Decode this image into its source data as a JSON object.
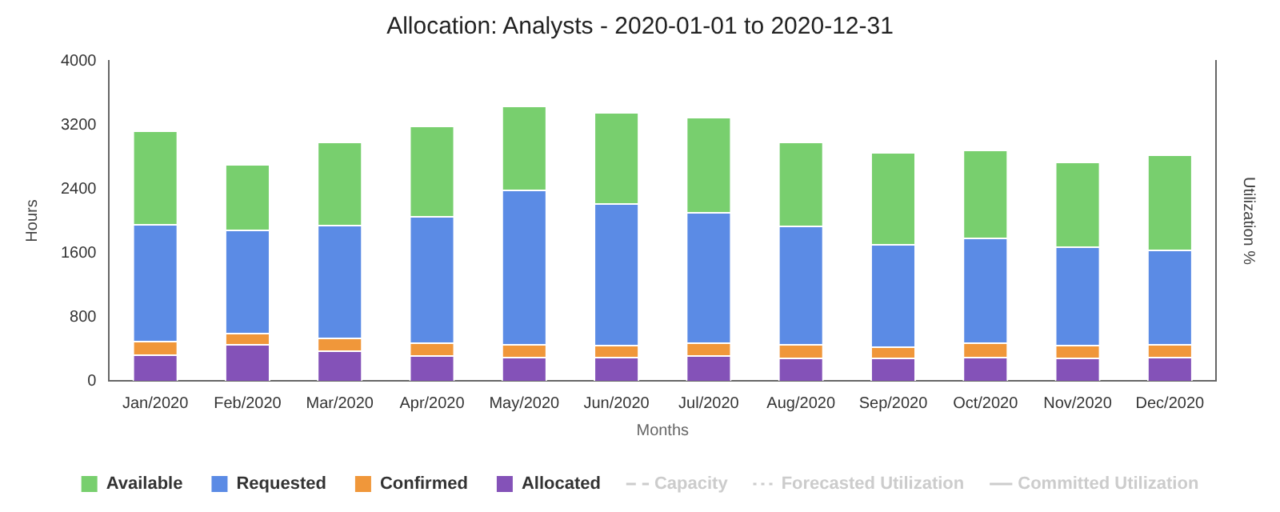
{
  "chart_data": {
    "type": "bar",
    "title": "Allocation: Analysts - 2020-01-01 to 2020-12-31",
    "xlabel": "Months",
    "ylabel": "Hours",
    "y2label": "Utilization %",
    "categories": [
      "Jan/2020",
      "Feb/2020",
      "Mar/2020",
      "Apr/2020",
      "May/2020",
      "Jun/2020",
      "Jul/2020",
      "Aug/2020",
      "Sep/2020",
      "Oct/2020",
      "Nov/2020",
      "Dec/2020"
    ],
    "stacked": true,
    "ylim": [
      0,
      4000
    ],
    "yticks": [
      0,
      800,
      1600,
      2400,
      3200,
      4000
    ],
    "grid": false,
    "legend": "bottom",
    "series": [
      {
        "name": "Allocated",
        "color": "#8452b8",
        "values": [
          330,
          460,
          380,
          320,
          300,
          300,
          320,
          290,
          290,
          300,
          290,
          300
        ]
      },
      {
        "name": "Confirmed",
        "color": "#f0973a",
        "values": [
          170,
          140,
          160,
          160,
          160,
          150,
          160,
          170,
          140,
          180,
          160,
          160
        ]
      },
      {
        "name": "Requested",
        "color": "#5b8be5",
        "values": [
          1460,
          1290,
          1410,
          1580,
          1930,
          1770,
          1630,
          1480,
          1280,
          1310,
          1230,
          1180
        ]
      },
      {
        "name": "Available",
        "color": "#78cf6e",
        "values": [
          1170,
          820,
          1040,
          1130,
          1050,
          1140,
          1190,
          1050,
          1150,
          1100,
          1060,
          1190
        ]
      },
      {
        "name": "Capacity",
        "type": "line",
        "axis": "y2",
        "line_style": "dashed",
        "color": "#cccccc",
        "values": [
          null,
          null,
          null,
          null,
          null,
          null,
          null,
          null,
          null,
          null,
          null,
          null
        ]
      },
      {
        "name": "Forecasted Utilization",
        "type": "line",
        "axis": "y2",
        "line_style": "dotted",
        "color": "#cccccc",
        "values": [
          null,
          null,
          null,
          null,
          null,
          null,
          null,
          null,
          null,
          null,
          null,
          null
        ]
      },
      {
        "name": "Committed Utilization",
        "type": "line",
        "axis": "y2",
        "line_style": "solid",
        "color": "#cccccc",
        "values": [
          null,
          null,
          null,
          null,
          null,
          null,
          null,
          null,
          null,
          null,
          null,
          null
        ]
      }
    ]
  }
}
